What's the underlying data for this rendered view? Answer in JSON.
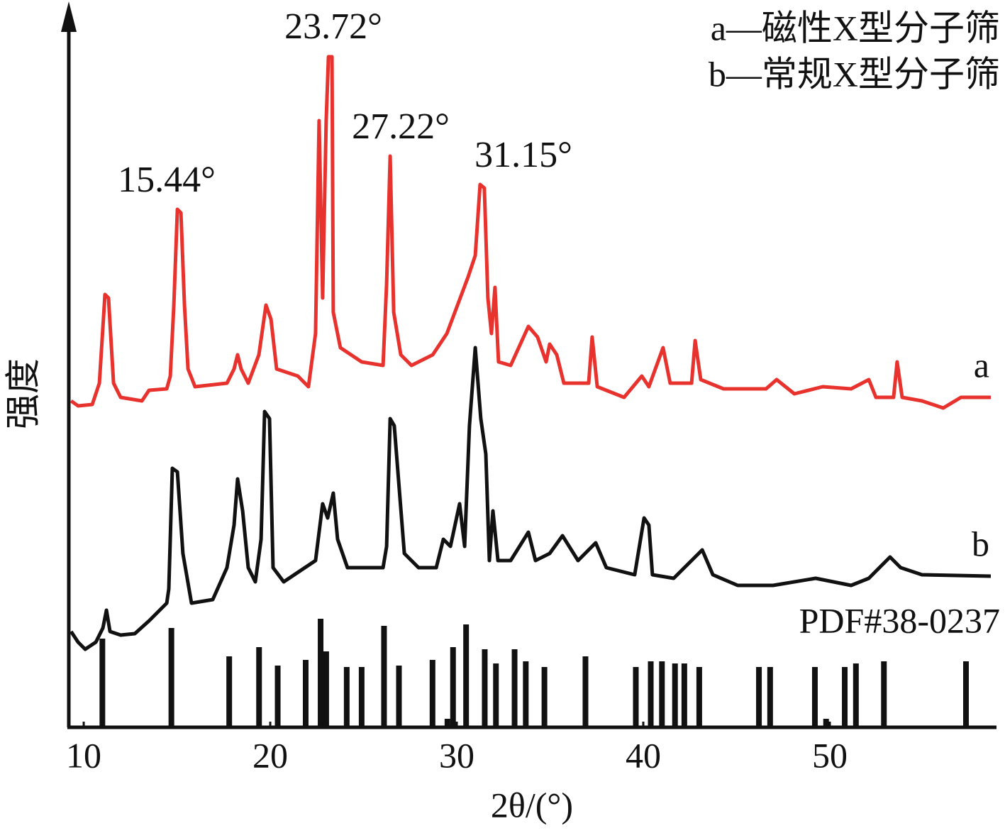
{
  "chart_data": {
    "type": "line",
    "xlabel": "2θ/(°)",
    "ylabel": "强度",
    "xlim": [
      9.2,
      58.7
    ],
    "xticks": [
      10,
      20,
      30,
      40,
      50
    ],
    "ylim": [
      0,
      1000
    ],
    "annotations": [
      "15.44°",
      "23.72°",
      "27.22°",
      "31.15°"
    ],
    "legend_text": [
      "a—磁性X型分子筛",
      "b—常规X型分子筛"
    ],
    "series": [
      {
        "name": "a",
        "color": "#e8322d",
        "x": [
          9.32,
          9.7,
          10.46,
          10.84,
          11.14,
          11.33,
          11.6,
          11.98,
          13.12,
          13.5,
          14.45,
          14.64,
          14.83,
          15.02,
          15.21,
          15.4,
          15.59,
          15.97,
          17.68,
          18.06,
          18.25,
          18.44,
          18.82,
          19.39,
          19.77,
          20.04,
          20.34,
          21.48,
          22.05,
          22.43,
          22.62,
          22.81,
          23.0,
          23.12,
          23.31,
          23.38,
          23.76,
          24.9,
          26.05,
          26.24,
          26.43,
          26.62,
          27.0,
          27.57,
          28.71,
          29.47,
          30.61,
          30.99,
          31.25,
          31.48,
          31.67,
          31.86,
          32.05,
          32.24,
          32.89,
          33.84,
          34.33,
          34.79,
          34.98,
          35.36,
          35.74,
          37.07,
          37.26,
          37.53,
          38.97,
          39.92,
          40.3,
          41.06,
          41.44,
          42.59,
          42.78,
          43.08,
          44.3,
          46.58,
          47.15,
          48.1,
          49.62,
          51.14,
          52.09,
          52.47,
          53.42,
          53.61,
          53.88,
          54.94,
          56.08,
          57.03,
          58.63
        ],
        "values": [
          460,
          453,
          455,
          485,
          610,
          605,
          485,
          465,
          460,
          475,
          477,
          495,
          595,
          730,
          725,
          595,
          505,
          480,
          485,
          505,
          525,
          505,
          485,
          525,
          595,
          575,
          505,
          495,
          480,
          555,
          855,
          605,
          855,
          945,
          945,
          585,
          535,
          515,
          510,
          625,
          805,
          585,
          525,
          510,
          525,
          555,
          635,
          665,
          765,
          760,
          605,
          555,
          620,
          515,
          510,
          565,
          550,
          515,
          540,
          525,
          485,
          485,
          550,
          480,
          465,
          495,
          480,
          535,
          485,
          485,
          545,
          490,
          477,
          477,
          490,
          470,
          480,
          477,
          490,
          465,
          465,
          515,
          465,
          460,
          450,
          465,
          465
        ]
      },
      {
        "name": "b",
        "color": "#111111",
        "x": [
          9.32,
          9.7,
          10.08,
          10.65,
          11.03,
          11.22,
          11.41,
          11.98,
          12.74,
          13.5,
          14.45,
          14.56,
          14.75,
          15.02,
          15.32,
          15.78,
          16.92,
          17.68,
          18.06,
          18.25,
          18.52,
          18.82,
          19.2,
          19.51,
          19.7,
          19.96,
          20.15,
          20.72,
          21.86,
          22.43,
          22.81,
          23.08,
          23.38,
          23.61,
          24.14,
          26.05,
          26.24,
          26.43,
          26.65,
          27.19,
          27.95,
          28.9,
          29.28,
          29.66,
          30.15,
          30.42,
          30.68,
          30.99,
          31.29,
          31.56,
          31.75,
          31.94,
          32.21,
          32.89,
          33.84,
          34.22,
          34.98,
          35.67,
          36.5,
          37.45,
          38.02,
          39.54,
          40.04,
          40.3,
          40.49,
          41.63,
          43.16,
          43.73,
          45.06,
          46.96,
          49.24,
          51.14,
          52.09,
          53.23,
          53.8,
          54.94,
          58.63
        ],
        "values": [
          135,
          120,
          110,
          120,
          140,
          165,
          135,
          130,
          132,
          150,
          175,
          195,
          365,
          360,
          245,
          175,
          180,
          225,
          285,
          350,
          305,
          225,
          205,
          265,
          445,
          435,
          225,
          205,
          225,
          235,
          315,
          295,
          330,
          265,
          225,
          225,
          255,
          435,
          425,
          245,
          225,
          225,
          265,
          255,
          315,
          255,
          425,
          535,
          435,
          385,
          235,
          305,
          235,
          235,
          275,
          235,
          245,
          270,
          235,
          260,
          225,
          215,
          295,
          285,
          215,
          210,
          250,
          215,
          200,
          200,
          210,
          200,
          210,
          240,
          225,
          215,
          213
        ]
      }
    ],
    "reference": {
      "name": "PDF#38-0237",
      "color": "#111111",
      "x": [
        11.0,
        14.7,
        17.8,
        19.4,
        20.4,
        21.9,
        22.7,
        23.0,
        24.1,
        24.9,
        26.1,
        26.9,
        28.7,
        29.5,
        29.8,
        30.5,
        31.5,
        32.1,
        33.1,
        33.7,
        34.7,
        36.9,
        39.6,
        40.4,
        41.0,
        41.7,
        42.2,
        43.0,
        46.2,
        46.8,
        49.2,
        49.8,
        50.8,
        51.4,
        52.9,
        57.3
      ],
      "values": [
        125,
        140,
        100,
        113,
        87,
        95,
        153,
        107,
        85,
        85,
        143,
        87,
        95,
        12,
        113,
        145,
        110,
        90,
        110,
        93,
        85,
        100,
        85,
        93,
        93,
        90,
        90,
        85,
        85,
        85,
        85,
        12,
        85,
        90,
        93,
        93
      ]
    }
  }
}
